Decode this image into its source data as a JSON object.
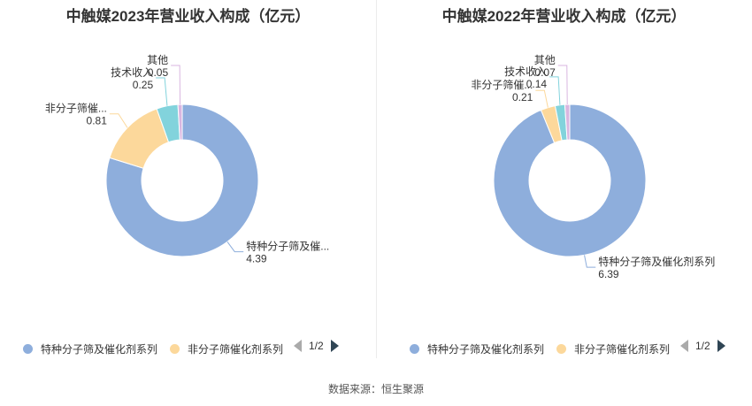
{
  "source_label": "数据来源：恒生聚源",
  "colors": [
    "#8eaedc",
    "#fcd89b",
    "#82d3dc",
    "#d9b6e0"
  ],
  "chart_data": [
    {
      "type": "pie",
      "title": "中触媒2023年营业收入构成（亿元）",
      "categories": [
        "特种分子筛及催化剂系列",
        "非分子筛催化剂系列",
        "技术收入",
        "其他"
      ],
      "display_labels": [
        "特种分子筛及催...",
        "非分子筛催...",
        "技术收入",
        "其他"
      ],
      "values": [
        4.39,
        0.81,
        0.25,
        0.05
      ],
      "value_labels": [
        "4.39",
        "0.81",
        "0.25",
        "0.05"
      ],
      "legend": {
        "visible_items": [
          "特种分子筛及催化剂系列",
          "非分子筛催化剂系列"
        ],
        "page": "1/2",
        "placement": "bottom"
      }
    },
    {
      "type": "pie",
      "title": "中触媒2022年营业收入构成（亿元）",
      "categories": [
        "特种分子筛及催化剂系列",
        "非分子筛催化剂系列",
        "技术收入",
        "其他"
      ],
      "display_labels": [
        "特种分子筛及催化剂系列",
        "非分子筛催...",
        "技术收入",
        "其他"
      ],
      "values": [
        6.39,
        0.21,
        0.14,
        0.07
      ],
      "value_labels": [
        "6.39",
        "0.21",
        "0.14",
        "0.07"
      ],
      "legend": {
        "visible_items": [
          "特种分子筛及催化剂系列",
          "非分子筛催化剂系列"
        ],
        "page": "1/2",
        "placement": "bottom"
      }
    }
  ]
}
